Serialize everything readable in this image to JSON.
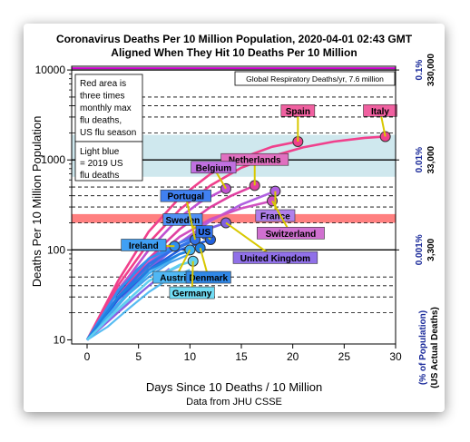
{
  "chart_data": {
    "type": "line",
    "title": "Coronavirus Deaths Per 10 Million Population, 2020-04-01 02:43 GMT",
    "subtitle": "Aligned When They Hit 10 Deaths Per 10 Million",
    "xlabel": "Days Since 10 Deaths / 10 Million",
    "xlabel_sub": "Data from JHU CSSE",
    "ylabel": "Deaths Per 10 Million Population",
    "right_axis_label_1": "(% of Population)",
    "right_axis_label_2": "(US Actual Deaths)",
    "xlim": [
      -1.5,
      30
    ],
    "ylim": [
      9,
      11000
    ],
    "y_scale": "log",
    "x_ticks": [
      "0",
      "5",
      "10",
      "15",
      "20",
      "25",
      "30"
    ],
    "y_ticks": [
      "10",
      "100",
      "1000",
      "10000"
    ],
    "right_ticks": [
      {
        "y": 100,
        "pct": "0.001%",
        "us": "3,300"
      },
      {
        "y": 1000,
        "pct": "0.01%",
        "us": "33,000"
      },
      {
        "y": 10000,
        "pct": "0.1%",
        "us": "330,000"
      }
    ],
    "grid": false,
    "dashed_levels": [
      20,
      30,
      40,
      50,
      200,
      300,
      400,
      500,
      2000,
      3000,
      4000,
      5000
    ],
    "solid_levels": [
      100,
      1000,
      10000
    ],
    "bands": [
      {
        "name": "flu-max-band",
        "y": [
          200,
          250
        ],
        "color": "#ff8080"
      },
      {
        "name": "us-flu-band",
        "y": [
          650,
          1900
        ],
        "color": "#cfe8ee"
      }
    ],
    "global_line": {
      "y": 10000,
      "label": "Global Respiratory Deaths/yr, 7.6 million",
      "color": "#cc00cc"
    },
    "notes": [
      {
        "text": [
          "Red area is",
          "three times",
          "monthly max",
          "flu deaths,",
          "US flu season"
        ]
      },
      {
        "text": [
          "Light blue",
          "= 2019 US",
          "flu deaths"
        ]
      }
    ],
    "series": [
      {
        "name": "Italy",
        "color": "#f0408c",
        "x": [
          0,
          3,
          6,
          9,
          12,
          15,
          18,
          21,
          24,
          27,
          29
        ],
        "y": [
          10,
          40,
          120,
          280,
          520,
          820,
          1100,
          1380,
          1600,
          1760,
          1820
        ]
      },
      {
        "name": "Spain",
        "color": "#f0408c",
        "x": [
          0,
          3,
          6,
          9,
          12,
          15,
          18,
          20.5
        ],
        "y": [
          10,
          45,
          160,
          380,
          700,
          1050,
          1400,
          1600
        ]
      },
      {
        "name": "Netherlands",
        "color": "#e040a0",
        "x": [
          0,
          3,
          6,
          9,
          12,
          14,
          16.3
        ],
        "y": [
          10,
          30,
          80,
          170,
          300,
          400,
          520
        ]
      },
      {
        "name": "Belgium",
        "color": "#c050d0",
        "x": [
          0,
          3,
          6,
          9,
          11,
          13.5
        ],
        "y": [
          10,
          35,
          100,
          230,
          340,
          480
        ]
      },
      {
        "name": "France",
        "color": "#b060e0",
        "x": [
          0,
          3,
          6,
          9,
          12,
          15,
          18.3
        ],
        "y": [
          10,
          25,
          60,
          120,
          210,
          320,
          450
        ]
      },
      {
        "name": "Switzerland",
        "color": "#d050c0",
        "x": [
          0,
          3,
          6,
          9,
          12,
          15,
          18
        ],
        "y": [
          10,
          28,
          70,
          140,
          220,
          290,
          350
        ]
      },
      {
        "name": "United Kingdom",
        "color": "#8060e0",
        "x": [
          0,
          3,
          6,
          9,
          11,
          13.5
        ],
        "y": [
          10,
          25,
          60,
          120,
          160,
          200
        ]
      },
      {
        "name": "Sweden",
        "color": "#4080f0",
        "x": [
          0,
          3,
          6,
          9,
          11.5
        ],
        "y": [
          10,
          30,
          70,
          120,
          150
        ]
      },
      {
        "name": "Portugal",
        "color": "#3070e8",
        "x": [
          0,
          3,
          6,
          9,
          10.5
        ],
        "y": [
          10,
          30,
          70,
          110,
          130
        ]
      },
      {
        "name": "Ireland",
        "color": "#3090f0",
        "x": [
          0,
          3,
          6,
          8.5
        ],
        "y": [
          10,
          35,
          80,
          110
        ]
      },
      {
        "name": "US",
        "color": "#2060e0",
        "x": [
          0,
          3,
          6,
          9,
          12
        ],
        "y": [
          10,
          28,
          60,
          100,
          130
        ]
      },
      {
        "name": "Austria",
        "color": "#40b0f0",
        "x": [
          0,
          3,
          6,
          9,
          10
        ],
        "y": [
          10,
          25,
          55,
          90,
          100
        ]
      },
      {
        "name": "Denmark",
        "color": "#2080e0",
        "x": [
          0,
          3,
          6,
          9,
          11
        ],
        "y": [
          10,
          30,
          60,
          90,
          105
        ]
      },
      {
        "name": "Germany",
        "color": "#60d0f0",
        "x": [
          0,
          3,
          6,
          9,
          10.3
        ],
        "y": [
          10,
          22,
          45,
          68,
          75
        ]
      }
    ],
    "background_series": [
      {
        "color": "#1060d0",
        "x": [
          0,
          2,
          4,
          6,
          8,
          10
        ],
        "y": [
          10,
          22,
          40,
          65,
          95,
          120
        ]
      },
      {
        "color": "#2890e8",
        "x": [
          0,
          2,
          4,
          6,
          8,
          10
        ],
        "y": [
          10,
          18,
          32,
          50,
          72,
          90
        ]
      },
      {
        "color": "#0050c0",
        "x": [
          0,
          2,
          4,
          6,
          8
        ],
        "y": [
          10,
          24,
          45,
          70,
          100
        ]
      },
      {
        "color": "#50a8f0",
        "x": [
          0,
          2,
          4,
          6,
          8,
          9
        ],
        "y": [
          10,
          16,
          26,
          40,
          58,
          66
        ]
      },
      {
        "color": "#1878e0",
        "x": [
          0,
          2,
          4,
          6,
          7
        ],
        "y": [
          10,
          26,
          50,
          80,
          95
        ]
      },
      {
        "color": "#d040c0",
        "x": [
          0,
          3,
          6,
          9
        ],
        "y": [
          10,
          30,
          75,
          140
        ]
      },
      {
        "color": "#9050e0",
        "x": [
          0,
          3,
          6,
          8
        ],
        "y": [
          10,
          20,
          40,
          62
        ]
      },
      {
        "color": "#3ab0f0",
        "x": [
          0,
          2,
          4,
          6,
          8,
          10
        ],
        "y": [
          10,
          14,
          22,
          34,
          48,
          60
        ]
      }
    ],
    "labels": [
      {
        "series": "Italy",
        "text": "Italy",
        "color": "#f060a0",
        "at": [
          28.5,
          3500
        ]
      },
      {
        "series": "Spain",
        "text": "Spain",
        "color": "#f060a0",
        "at": [
          20.5,
          3500
        ]
      },
      {
        "series": "Netherlands",
        "text": "Netherlands",
        "color": "#e070c0",
        "at": [
          16.3,
          1000
        ]
      },
      {
        "series": "Belgium",
        "text": "Belgium",
        "color": "#c070e0",
        "at": [
          12.3,
          820
        ]
      },
      {
        "series": "France",
        "text": "France",
        "color": "#b080ec",
        "at": [
          18.3,
          238
        ]
      },
      {
        "series": "Switzerland",
        "text": "Switzerland",
        "color": "#d070d0",
        "at": [
          19.8,
          152
        ]
      },
      {
        "series": "United Kingdom",
        "text": "United Kingdom",
        "color": "#9070e8",
        "at": [
          18.3,
          81
        ]
      },
      {
        "series": "Sweden",
        "text": "Sweden",
        "color": "#5090f4",
        "at": [
          9.3,
          215
        ]
      },
      {
        "series": "Portugal",
        "text": "Portugal",
        "color": "#4080f0",
        "at": [
          9.6,
          395
        ]
      },
      {
        "series": "Ireland",
        "text": "Ireland",
        "color": "#40a0f4",
        "at": [
          5.5,
          112
        ]
      },
      {
        "series": "US",
        "text": "US",
        "color": "#3070e8",
        "at": [
          11.4,
          158
        ]
      },
      {
        "series": "Austria",
        "text": "Austria",
        "color": "#50b8f4",
        "at": [
          8.6,
          49
        ]
      },
      {
        "series": "Denmark",
        "text": "Denmark",
        "color": "#3088e8",
        "at": [
          11.8,
          49
        ]
      },
      {
        "series": "Germany",
        "text": "Germany",
        "color": "#70dcf4",
        "at": [
          10.2,
          33
        ]
      }
    ]
  }
}
